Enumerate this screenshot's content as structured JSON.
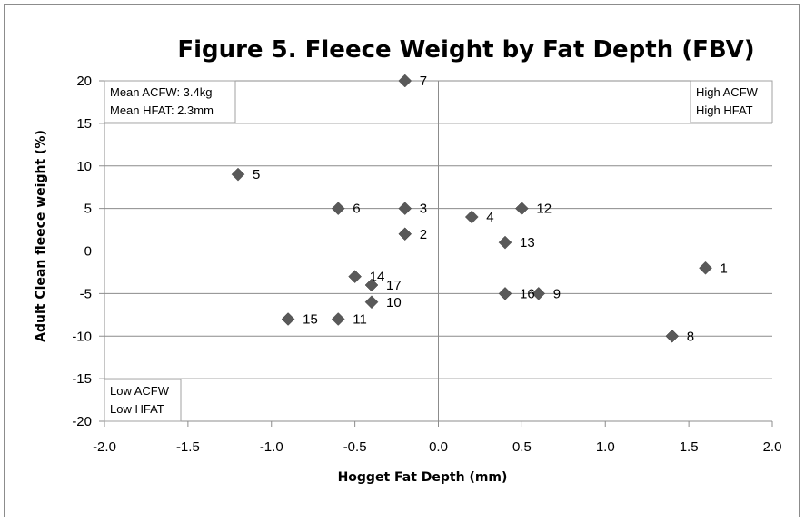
{
  "chart_data": {
    "type": "scatter",
    "title": "Figure 5. Fleece Weight by Fat Depth (FBV)",
    "xlabel": "Hogget Fat Depth (mm)",
    "ylabel": "Adult Clean fleece weight (%)",
    "xlim": [
      -2.0,
      2.0
    ],
    "ylim": [
      -20,
      20
    ],
    "xticks": [
      "-2.0",
      "-1.5",
      "-1.0",
      "-0.5",
      "0.0",
      "0.5",
      "1.0",
      "1.5",
      "2.0"
    ],
    "yticks": [
      "20",
      "15",
      "10",
      "5",
      "0",
      "-5",
      "-10",
      "-15",
      "-20"
    ],
    "grid": "horizontal",
    "marker": "diamond",
    "marker_color": "#595959",
    "points": [
      {
        "label": "1",
        "x": 1.6,
        "y": -2
      },
      {
        "label": "2",
        "x": -0.2,
        "y": 2
      },
      {
        "label": "3",
        "x": -0.2,
        "y": 5
      },
      {
        "label": "4",
        "x": 0.2,
        "y": 4
      },
      {
        "label": "5",
        "x": -1.2,
        "y": 9
      },
      {
        "label": "6",
        "x": -0.6,
        "y": 5
      },
      {
        "label": "7",
        "x": -0.2,
        "y": 20
      },
      {
        "label": "8",
        "x": 1.4,
        "y": -10
      },
      {
        "label": "9",
        "x": 0.6,
        "y": -5
      },
      {
        "label": "10",
        "x": -0.4,
        "y": -6
      },
      {
        "label": "11",
        "x": -0.6,
        "y": -8
      },
      {
        "label": "12",
        "x": 0.5,
        "y": 5
      },
      {
        "label": "13",
        "x": 0.4,
        "y": 1
      },
      {
        "label": "14",
        "x": -0.5,
        "y": -3
      },
      {
        "label": "15",
        "x": -0.9,
        "y": -8
      },
      {
        "label": "16",
        "x": 0.4,
        "y": -5
      },
      {
        "label": "17",
        "x": -0.4,
        "y": -4
      }
    ],
    "annotations": {
      "top_left": [
        "Mean ACFW: 3.4kg",
        "Mean HFAT: 2.3mm"
      ],
      "top_right": [
        "High ACFW",
        "High HFAT"
      ],
      "bottom_left": [
        "Low ACFW",
        "Low HFAT"
      ]
    }
  }
}
